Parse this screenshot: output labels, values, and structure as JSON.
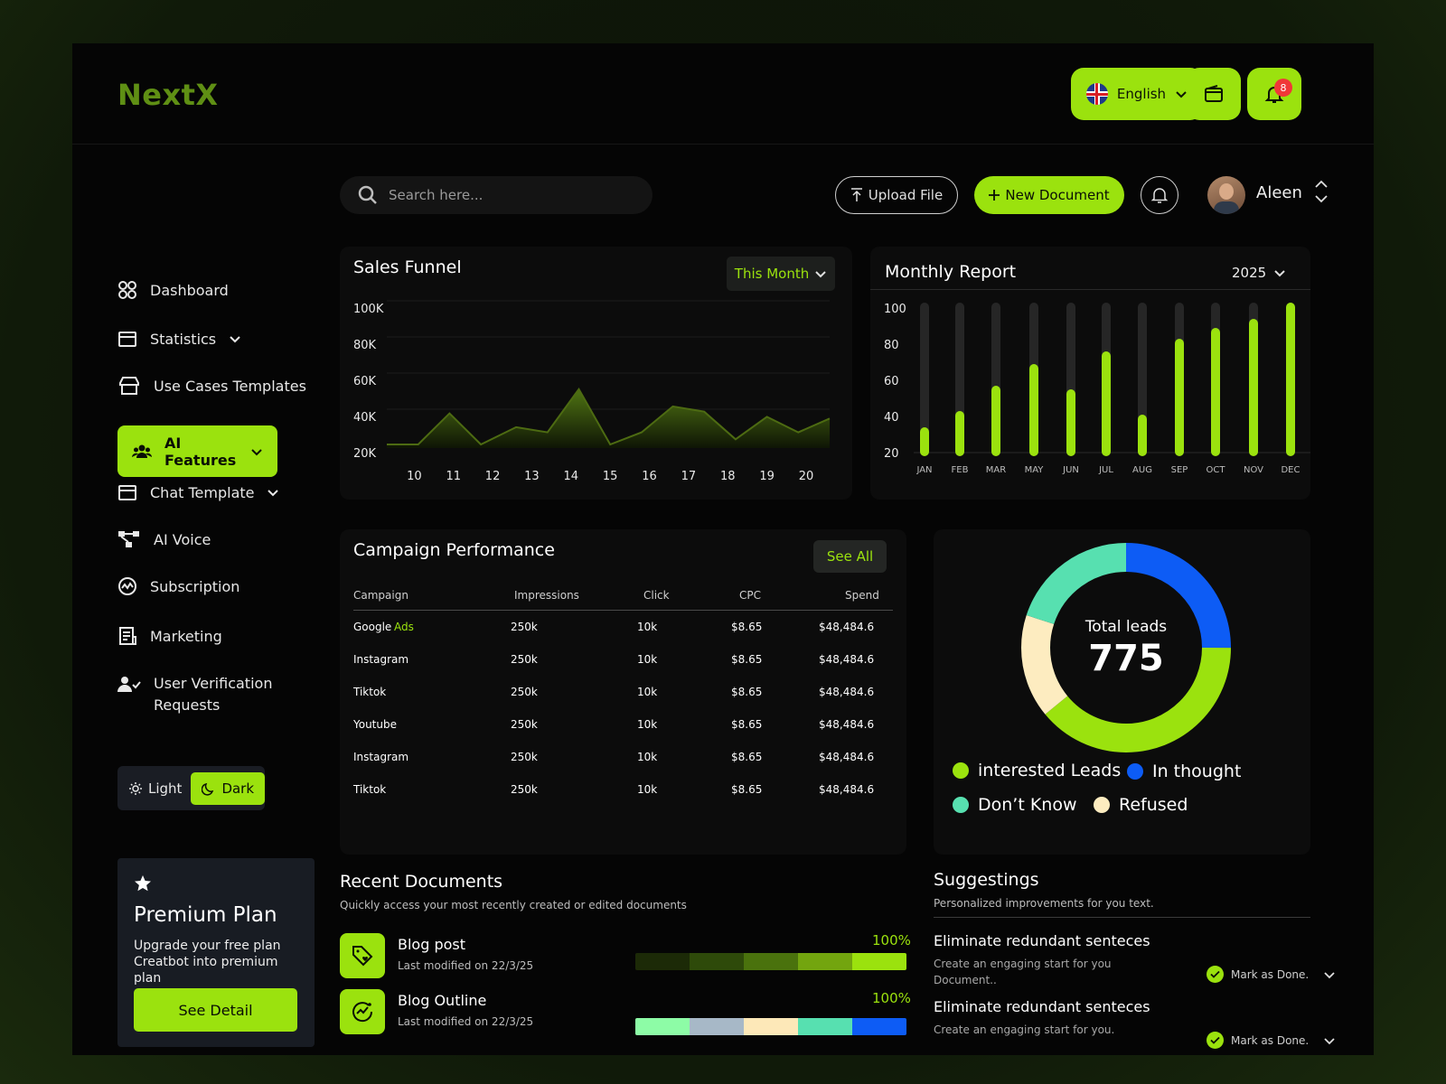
{
  "app": {
    "logo": "NextX"
  },
  "topbar": {
    "language": "English",
    "notification_count": "8"
  },
  "sidebar": {
    "items": [
      {
        "label": "Dashboard"
      },
      {
        "label": "Statistics"
      },
      {
        "label": "Use Cases Templates"
      },
      {
        "label": "AI Features"
      },
      {
        "label": "Chat Template"
      },
      {
        "label": "AI Voice"
      },
      {
        "label": "Subscription"
      },
      {
        "label": "Marketing"
      },
      {
        "label": "User Verification Requests"
      }
    ],
    "active_index": 3,
    "theme": {
      "light": "Light",
      "dark": "Dark",
      "selected": "Dark"
    },
    "premium": {
      "title": "Premium Plan",
      "text": "Upgrade your free plan Creatbot into premium plan",
      "button": "See Detail"
    }
  },
  "header": {
    "search_placeholder": "Search here...",
    "upload": "Upload File",
    "new_document": "New Document",
    "username": "Aleen"
  },
  "sales_funnel": {
    "title": "Sales Funnel",
    "filter": "This Month"
  },
  "monthly_report": {
    "title": "Monthly Report",
    "year": "2025"
  },
  "chart_data": [
    {
      "type": "area",
      "title": "Sales Funnel",
      "x": [
        "10",
        "11",
        "12",
        "13",
        "14",
        "15",
        "16",
        "17",
        "18",
        "19",
        "20"
      ],
      "y_ticks": [
        "100K",
        "80K",
        "60K",
        "40K",
        "20K"
      ],
      "ylim": [
        20000,
        100000
      ],
      "points": [
        [
          9.3,
          40000
        ],
        [
          10.1,
          40000
        ],
        [
          10.9,
          58000
        ],
        [
          11.7,
          40000
        ],
        [
          12.6,
          50000
        ],
        [
          13.4,
          47000
        ],
        [
          14.2,
          72000
        ],
        [
          15.0,
          40000
        ],
        [
          15.8,
          47000
        ],
        [
          16.6,
          62000
        ],
        [
          17.4,
          59000
        ],
        [
          18.2,
          43000
        ],
        [
          19.0,
          56000
        ],
        [
          19.8,
          47000
        ],
        [
          20.6,
          55000
        ]
      ],
      "line_color": "#4d6b12",
      "grid": true
    },
    {
      "type": "bar",
      "title": "Monthly Report",
      "categories": [
        "JAN",
        "FEB",
        "MAR",
        "MAY",
        "JUN",
        "JUL",
        "AUG",
        "SEP",
        "OCT",
        "NOV",
        "DEC"
      ],
      "values": [
        31,
        40,
        54,
        66,
        52,
        73,
        38,
        80,
        86,
        91,
        100
      ],
      "y_ticks": [
        "100",
        "80",
        "60",
        "40",
        "20"
      ],
      "ylim": [
        20,
        100
      ],
      "bar_color": "#9be20e",
      "track_color": "#262626"
    },
    {
      "type": "pie",
      "title": "Total leads",
      "total": "775",
      "slices": [
        {
          "name": "In thought",
          "value": 25,
          "color": "#0d5cf5"
        },
        {
          "name": "interested Leads",
          "value": 39,
          "color": "#9be20e"
        },
        {
          "name": "Refused",
          "value": 16,
          "color": "#fdecc0"
        },
        {
          "name": "Don’t Know",
          "value": 20,
          "color": "#57e0b0"
        }
      ]
    }
  ],
  "campaign": {
    "title": "Campaign Performance",
    "see_all": "See All",
    "columns": [
      "Campaign",
      "Impressions",
      "Click",
      "CPC",
      "Spend"
    ],
    "rows": [
      {
        "campaign": "Google",
        "suffix": "Ads",
        "impressions": "250k",
        "click": "10k",
        "cpc": "$8.65",
        "spend": "$48,484.6"
      },
      {
        "campaign": "Instagram",
        "suffix": "",
        "impressions": "250k",
        "click": "10k",
        "cpc": "$8.65",
        "spend": "$48,484.6"
      },
      {
        "campaign": "Tiktok",
        "suffix": "",
        "impressions": "250k",
        "click": "10k",
        "cpc": "$8.65",
        "spend": "$48,484.6"
      },
      {
        "campaign": "Youtube",
        "suffix": "",
        "impressions": "250k",
        "click": "10k",
        "cpc": "$8.65",
        "spend": "$48,484.6"
      },
      {
        "campaign": "Instagram",
        "suffix": "",
        "impressions": "250k",
        "click": "10k",
        "cpc": "$8.65",
        "spend": "$48,484.6"
      },
      {
        "campaign": "Tiktok",
        "suffix": "",
        "impressions": "250k",
        "click": "10k",
        "cpc": "$8.65",
        "spend": "$48,484.6"
      }
    ]
  },
  "leads": {
    "center_label": "Total leads",
    "total": "775",
    "legend": [
      "interested Leads",
      "In thought",
      "Don’t Know",
      "Refused"
    ]
  },
  "documents": {
    "title": "Recent Documents",
    "subtitle": "Quickly access your most recently created or edited documents",
    "items": [
      {
        "name": "Blog post",
        "meta": "Last modified on 22/3/25",
        "percent": "100%",
        "progress": 1.0,
        "colors": [
          "#1c2a07",
          "#2e4a0a",
          "#4a720d",
          "#73a50f",
          "#9be20e"
        ]
      },
      {
        "name": "Blog Outline",
        "meta": "Last modified on 22/3/25",
        "percent": "100%",
        "progress": 1.0,
        "colors": [
          "#8dfca6",
          "#a7b8c7",
          "#fde8b8",
          "#57e0b0",
          "#0d5cf5"
        ]
      }
    ]
  },
  "suggestions": {
    "title": "Suggestings",
    "subtitle": "Personalized improvements for you text.",
    "items": [
      {
        "title": "Eliminate redundant senteces",
        "text": "Create an engaging start for you Document..",
        "action": "Mark as Done."
      },
      {
        "title": "Eliminate redundant senteces",
        "text": "Create an engaging start for you.",
        "action": "Mark as Done."
      }
    ]
  },
  "colors": {
    "accent": "#9be20e",
    "background": "#050505",
    "card": "#0c0c0c"
  }
}
